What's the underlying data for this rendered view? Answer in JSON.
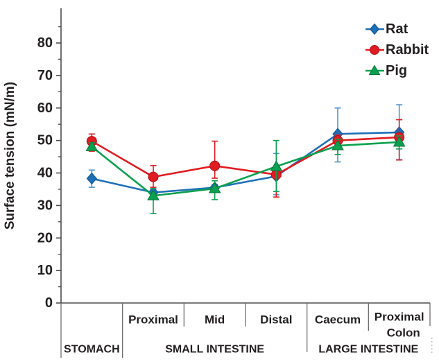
{
  "figure": {
    "background": "#ffffff",
    "axis_color": "#4d4d4f",
    "separator_color": "#6d6e71",
    "text_color": "#231f20",
    "artifact_color": "#c4c8ca"
  },
  "chart_data": {
    "type": "line",
    "title": "",
    "xlabel": "",
    "ylabel": "Surface tension (mN/m)",
    "ylim": [
      0,
      90
    ],
    "ytick_labels": [
      "0",
      "10",
      "20",
      "30",
      "40",
      "50",
      "60",
      "70",
      "80"
    ],
    "ytick_values": [
      0,
      10,
      20,
      30,
      40,
      50,
      60,
      70,
      80
    ],
    "ytick_minor_values": [
      5,
      15,
      25,
      35,
      45,
      55,
      65,
      75,
      85
    ],
    "grid": false,
    "legend_position": "top-right",
    "error_bars": true,
    "categories": [
      "Stomach",
      "Proximal",
      "Mid",
      "Distal",
      "Caecum",
      "Proximal Colon"
    ],
    "x_segments": [
      {
        "lines": [],
        "group_index": 0
      },
      {
        "lines": [
          "Proximal"
        ],
        "group_index": 1
      },
      {
        "lines": [
          "Mid"
        ],
        "group_index": 1
      },
      {
        "lines": [
          "Distal"
        ],
        "group_index": 1
      },
      {
        "lines": [
          "Caecum"
        ],
        "group_index": 2
      },
      {
        "lines": [
          "Proximal",
          "Colon"
        ],
        "group_index": 2
      }
    ],
    "x_groups": [
      {
        "label": "STOMACH",
        "start": 0,
        "end": 1
      },
      {
        "label": "SMALL INTESTINE",
        "start": 1,
        "end": 4
      },
      {
        "label": "LARGE INTESTINE",
        "start": 4,
        "end": 6
      }
    ],
    "series": [
      {
        "name": "Rat",
        "marker": "diamond",
        "color": "#1d70b7",
        "marker_stroke": "#14548b",
        "error_color": "#4b94cf",
        "values": [
          38.3,
          34.0,
          35.5,
          39.0,
          52.0,
          52.5
        ],
        "err_plus": [
          2.6,
          0.8,
          1.0,
          7.0,
          8.0,
          8.5
        ],
        "err_minus": [
          2.7,
          0.8,
          1.0,
          5.7,
          8.6,
          8.4
        ]
      },
      {
        "name": "Rabbit",
        "marker": "circle",
        "color": "#e11b22",
        "marker_stroke": "#ab1117",
        "error_color": "#e11b22",
        "values": [
          49.8,
          38.8,
          42.2,
          39.5,
          50.0,
          51.0
        ],
        "err_plus": [
          2.2,
          3.5,
          7.6,
          2.5,
          1.7,
          5.4
        ],
        "err_minus": [
          3.1,
          3.2,
          3.8,
          6.9,
          1.7,
          7.0
        ]
      },
      {
        "name": "Pig",
        "marker": "triangle",
        "color": "#0ba04e",
        "marker_stroke": "#07763a",
        "error_color": "#0ba04e",
        "values": [
          48.1,
          33.0,
          35.2,
          42.0,
          48.4,
          49.5
        ],
        "err_plus": [
          1.2,
          2.2,
          2.4,
          8.0,
          2.0,
          1.9
        ],
        "err_minus": [
          1.2,
          5.5,
          3.4,
          7.7,
          2.7,
          2.1
        ]
      }
    ]
  }
}
